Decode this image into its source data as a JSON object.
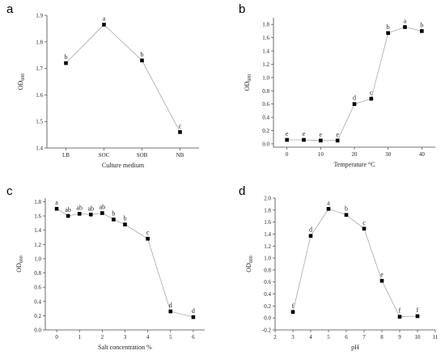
{
  "chart_data": [
    {
      "panel": "a",
      "type": "line",
      "categories": [
        "LB",
        "SOC",
        "SOB",
        "NB"
      ],
      "values": [
        1.72,
        1.865,
        1.73,
        1.46
      ],
      "labels": [
        "b",
        "a",
        "b",
        "c"
      ],
      "xlabel": "Culture medium",
      "ylabel": "OD600",
      "ylim": [
        1.4,
        1.9
      ],
      "yticks": [
        1.4,
        1.5,
        1.6,
        1.7,
        1.8,
        1.9
      ],
      "ytick_labels": [
        "1.4",
        "1.5",
        "1.6",
        "1.7",
        "1.8",
        "1.9"
      ]
    },
    {
      "panel": "b",
      "type": "line",
      "x": [
        0,
        5,
        10,
        15,
        20,
        25,
        30,
        35,
        40
      ],
      "values": [
        0.06,
        0.06,
        0.05,
        0.05,
        0.6,
        0.68,
        1.67,
        1.76,
        1.7
      ],
      "labels": [
        "e",
        "e",
        "e",
        "e",
        "d",
        "c",
        "b",
        "a",
        "b"
      ],
      "xlabel": "Temperature °C",
      "ylabel": "OD600",
      "xlim": [
        -4,
        44
      ],
      "xticks": [
        0,
        10,
        20,
        30,
        40
      ],
      "ylim": [
        -0.05,
        1.9
      ],
      "yticks": [
        0.0,
        0.2,
        0.4,
        0.6,
        0.8,
        1.0,
        1.2,
        1.4,
        1.6,
        1.8
      ],
      "ytick_labels": [
        "0.0",
        "0.2",
        "0.4",
        "0.6",
        "0.8",
        "1.0",
        "1.2",
        "1.4",
        "1.6",
        "1.8"
      ]
    },
    {
      "panel": "c",
      "type": "line",
      "x": [
        0,
        0.5,
        1,
        1.5,
        2,
        2.5,
        3,
        4,
        5,
        6
      ],
      "values": [
        1.7,
        1.6,
        1.63,
        1.62,
        1.64,
        1.55,
        1.48,
        1.28,
        0.26,
        0.18
      ],
      "labels": [
        "a",
        "ab",
        "ab",
        "ab",
        "ab",
        "b",
        "b",
        "c",
        "d",
        "d"
      ],
      "xlabel": "Salt concentration %",
      "ylabel": "OD600",
      "xlim": [
        -0.5,
        6.5
      ],
      "xticks": [
        0,
        1,
        2,
        3,
        4,
        5,
        6
      ],
      "ylim": [
        0.0,
        1.85
      ],
      "yticks": [
        0.0,
        0.2,
        0.4,
        0.6,
        0.8,
        1.0,
        1.2,
        1.4,
        1.6,
        1.8
      ],
      "ytick_labels": [
        "0.0",
        "0.2",
        "0.4",
        "0.6",
        "0.8",
        "1.0",
        "1.2",
        "1.4",
        "1.6",
        "1.8"
      ]
    },
    {
      "panel": "d",
      "type": "line",
      "x": [
        3,
        4,
        5,
        6,
        7,
        8,
        9,
        10
      ],
      "values": [
        0.1,
        1.37,
        1.82,
        1.72,
        1.49,
        0.62,
        0.02,
        0.03
      ],
      "labels": [
        "f",
        "d",
        "a",
        "b",
        "c",
        "e",
        "f",
        "f"
      ],
      "xlabel": "pH",
      "ylabel": "OD600",
      "xlim": [
        2,
        11
      ],
      "xticks": [
        2,
        3,
        4,
        5,
        6,
        7,
        8,
        9,
        10,
        11
      ],
      "ylim": [
        -0.2,
        2.0
      ],
      "yticks": [
        -0.2,
        0.0,
        0.2,
        0.4,
        0.6,
        0.8,
        1.0,
        1.2,
        1.4,
        1.6,
        1.8,
        2.0
      ],
      "ytick_labels": [
        "-0.2",
        "0.0",
        "0.2",
        "0.4",
        "0.6",
        "0.8",
        "1.0",
        "1.2",
        "1.4",
        "1.6",
        "1.8",
        "2.0"
      ]
    }
  ]
}
